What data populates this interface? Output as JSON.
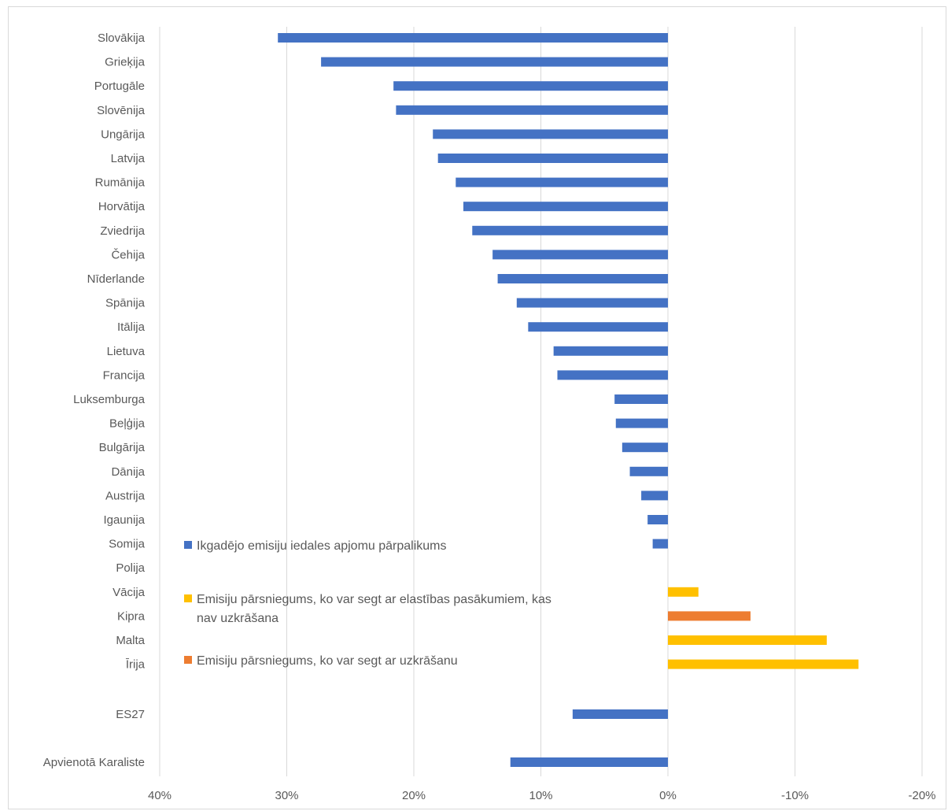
{
  "chart_data": {
    "type": "bar",
    "orientation": "horizontal",
    "x_axis_reversed": true,
    "xlim": [
      0.4,
      -0.2
    ],
    "xticks": [
      {
        "value": 0.4,
        "label": "40%"
      },
      {
        "value": 0.3,
        "label": "30%"
      },
      {
        "value": 0.2,
        "label": "20%"
      },
      {
        "value": 0.1,
        "label": "10%"
      },
      {
        "value": 0.0,
        "label": "0%"
      },
      {
        "value": -0.1,
        "label": "-10%"
      },
      {
        "value": -0.2,
        "label": "-20%"
      }
    ],
    "grid": true,
    "title": "",
    "xlabel": "",
    "ylabel": "",
    "categories": [
      "Slovākija",
      "Grieķija",
      "Portugāle",
      "Slovēnija",
      "Ungārija",
      "Latvija",
      "Rumānija",
      "Horvātija",
      "Zviedrija",
      "Čehija",
      "Nīderlande",
      "Spānija",
      "Itālija",
      "Lietuva",
      "Francija",
      "Luksemburga",
      "Beļģija",
      "Bulgārija",
      "Dānija",
      "Austrija",
      "Igaunija",
      "Somija",
      "Polija",
      "Vācija",
      "Kipra",
      "Malta",
      "Īrija",
      "ES27",
      "Apvienotā Karaliste"
    ],
    "series": [
      {
        "name": "Ikgadējo emisiju iedales apjomu pārpalikums",
        "color": "#4472C4",
        "values": [
          0.307,
          0.273,
          0.216,
          0.214,
          0.185,
          0.181,
          0.167,
          0.161,
          0.154,
          0.138,
          0.134,
          0.119,
          0.11,
          0.09,
          0.087,
          0.042,
          0.041,
          0.036,
          0.03,
          0.021,
          0.016,
          0.012,
          null,
          null,
          null,
          null,
          null,
          0.075,
          0.124
        ]
      },
      {
        "name": "Emisiju pārsniegums, ko var segt ar elastības pasākumiem, kas nav uzkrāšana",
        "color": "#FFC000",
        "values": [
          null,
          null,
          null,
          null,
          null,
          null,
          null,
          null,
          null,
          null,
          null,
          null,
          null,
          null,
          null,
          null,
          null,
          null,
          null,
          null,
          null,
          null,
          null,
          -0.024,
          null,
          -0.125,
          -0.15,
          null,
          null
        ]
      },
      {
        "name": "Emisiju pārsniegums, ko var segt ar uzkrāšanu",
        "color": "#ED7D31",
        "values": [
          null,
          null,
          null,
          null,
          null,
          null,
          null,
          null,
          null,
          null,
          null,
          null,
          null,
          null,
          null,
          null,
          null,
          null,
          null,
          null,
          null,
          null,
          null,
          null,
          -0.065,
          null,
          null,
          null,
          null
        ]
      }
    ],
    "legend": {
      "placement": "inside-left",
      "items": [
        {
          "label": "Ikgadējo emisiju iedales apjomu pārpalikums",
          "color": "#4472C4"
        },
        {
          "label_lines": [
            "Emisiju pārsniegums, ko var segt ar elastības pasākumiem, kas",
            "nav uzkrāšana"
          ],
          "color": "#FFC000"
        },
        {
          "label": "Emisiju pārsniegums, ko var segt ar uzkrāšanu",
          "color": "#ED7D31"
        }
      ]
    }
  }
}
